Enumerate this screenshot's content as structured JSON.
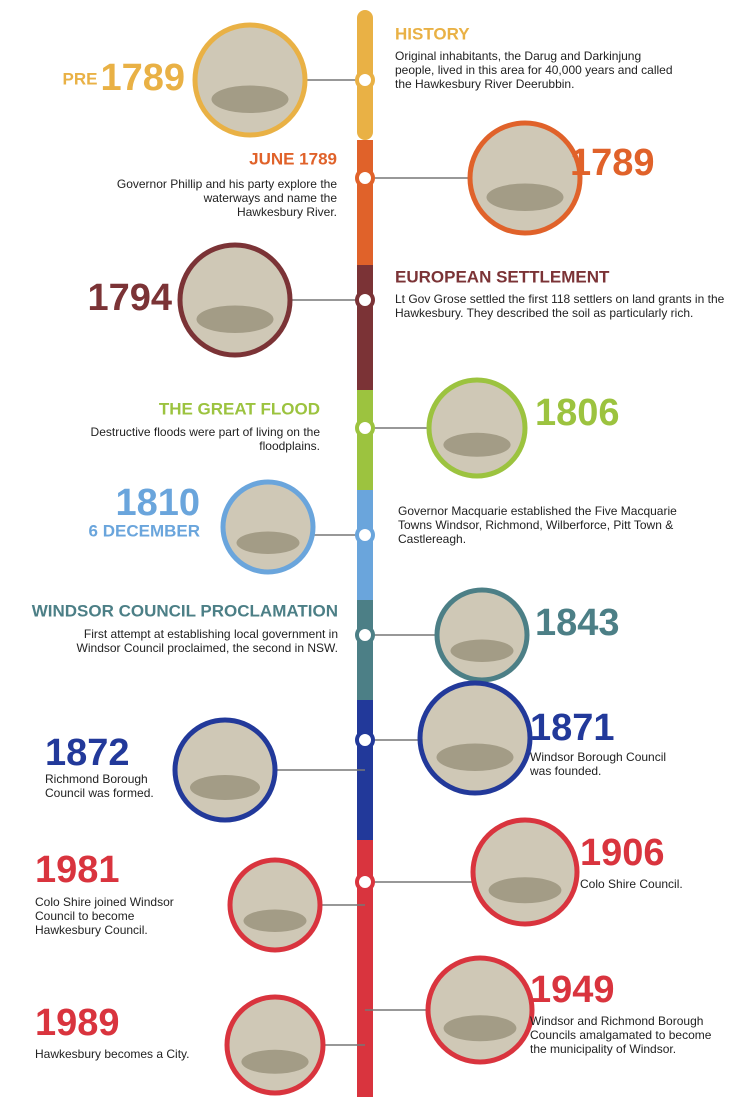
{
  "events": [
    {
      "prefix": "PRE",
      "year": "1789",
      "title": "HISTORY",
      "color": "#e9b145",
      "lines": [
        "Original inhabitants, the Darug and Darkinjung",
        "people, lived in this area for 40,000 years and called",
        "the Hawkesbury River Deerubbin."
      ]
    },
    {
      "title": "JUNE 1789",
      "year": "1789",
      "color": "#e0622a",
      "lines": [
        "Governor Phillip and his party explore the",
        "waterways and name the",
        "Hawkesbury River."
      ]
    },
    {
      "year": "1794",
      "title": "EUROPEAN SETTLEMENT",
      "color": "#7b3336",
      "lines": [
        "Lt Gov Grose settled the first 118 settlers on land grants in the",
        "Hawkesbury. They described the soil as particularly rich."
      ]
    },
    {
      "title": "THE GREAT FLOOD",
      "year": "1806",
      "color": "#9cc33f",
      "lines": [
        "Destructive floods were part of living on the",
        "floodplains."
      ]
    },
    {
      "year": "1810",
      "subtitle": "6 DECEMBER",
      "color": "#6aa5dc",
      "lines": [
        "Governor Macquarie established the Five Macquarie",
        "Towns Windsor, Richmond, Wilberforce, Pitt Town &",
        "Castlereagh."
      ]
    },
    {
      "title": "WINDSOR COUNCIL PROCLAMATION",
      "year": "1843",
      "color": "#4c7f86",
      "lines": [
        "First attempt at establishing local government in",
        "Windsor Council proclaimed, the second in NSW."
      ]
    },
    {
      "year": "1871",
      "color": "#22399a",
      "lines": [
        "Windsor Borough Council",
        "was founded."
      ]
    },
    {
      "year": "1872",
      "color": "#22399a",
      "lines": [
        "Richmond Borough",
        "Council was formed."
      ]
    },
    {
      "year": "1906",
      "color": "#d9343e",
      "lines": [
        "Colo Shire Council."
      ]
    },
    {
      "year": "1981",
      "color": "#d9343e",
      "lines": [
        "Colo Shire joined Windsor",
        "Council to become",
        "Hawkesbury Council."
      ]
    },
    {
      "year": "1949",
      "color": "#d9343e",
      "lines": [
        "Windsor and Richmond Borough",
        "Councils amalgamated to become",
        "the municipality of Windsor."
      ]
    },
    {
      "year": "1989",
      "color": "#d9343e",
      "lines": [
        "Hawkesbury becomes a City."
      ]
    }
  ]
}
